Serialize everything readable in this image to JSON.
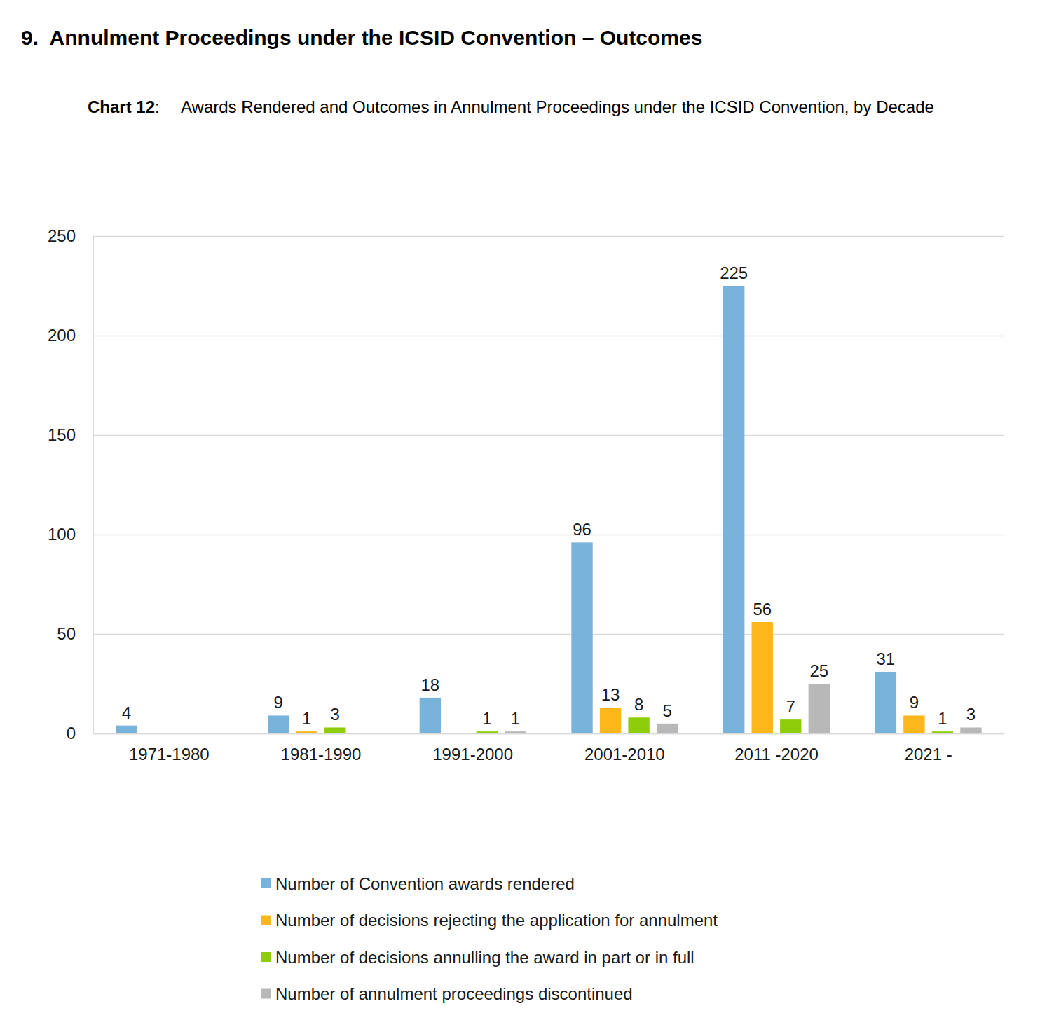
{
  "heading": "9.  Annulment Proceedings under the ICSID Convention – Outcomes",
  "chart_data": {
    "type": "bar",
    "title": "Chart 12: Awards Rendered and Outcomes in Annulment Proceedings under the ICSID Convention, by Decade",
    "categories": [
      "1971-1980",
      "1981-1990",
      "1991-2000",
      "2001-2010",
      "2011 -2020",
      "2021 -"
    ],
    "series": [
      {
        "name": "Number of Convention awards rendered",
        "color": "#78b3dc",
        "values": [
          4,
          9,
          18,
          96,
          225,
          31
        ]
      },
      {
        "name": "Number of decisions rejecting the application for annulment",
        "color": "#fdb71a",
        "values": [
          null,
          1,
          null,
          13,
          56,
          9
        ]
      },
      {
        "name": "Number of decisions annulling the award in part or in full",
        "color": "#8fcc0a",
        "values": [
          null,
          3,
          1,
          8,
          7,
          1
        ]
      },
      {
        "name": "Number of annulment proceedings discontinued",
        "color": "#b8b8b8",
        "values": [
          null,
          null,
          1,
          5,
          25,
          3
        ]
      }
    ],
    "ylim": [
      0,
      250
    ],
    "yticks": [
      0,
      50,
      100,
      150,
      200,
      250
    ],
    "grid": true,
    "data_labels": true,
    "legend": "bottom"
  }
}
